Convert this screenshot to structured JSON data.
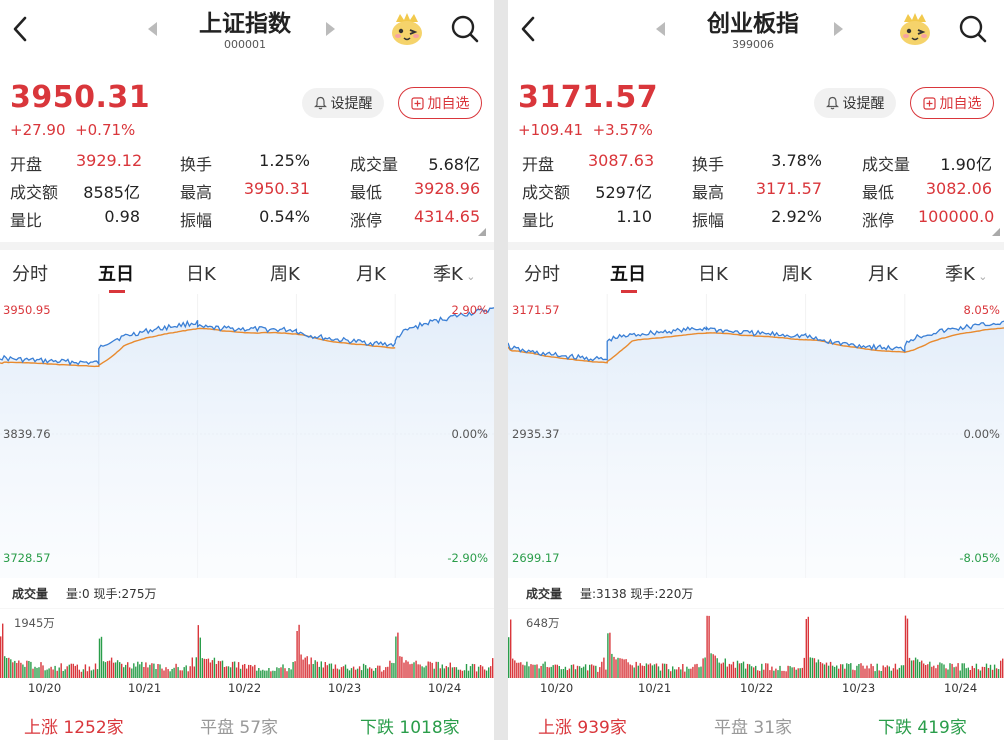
{
  "panels": [
    {
      "title": "上证指数",
      "code": "000001",
      "price": "3950.31",
      "change": "+27.90",
      "change_pct": "+0.71%",
      "alert_label": "设提醒",
      "add_label": "加自选",
      "stats": [
        [
          {
            "label": "开盘",
            "value": "3929.12",
            "color": "#d9363b"
          },
          {
            "label": "换手",
            "value": "1.25%",
            "color": "#222"
          },
          {
            "label": "成交量",
            "value": "5.68亿",
            "color": "#222"
          }
        ],
        [
          {
            "label": "成交额",
            "value": "8585亿",
            "color": "#222"
          },
          {
            "label": "最高",
            "value": "3950.31",
            "color": "#d9363b"
          },
          {
            "label": "最低",
            "value": "3928.96",
            "color": "#d9363b"
          }
        ],
        [
          {
            "label": "量比",
            "value": "0.98",
            "color": "#222"
          },
          {
            "label": "振幅",
            "value": "0.54%",
            "color": "#222"
          },
          {
            "label": "涨停",
            "value": "4314.65",
            "color": "#d9363b"
          }
        ]
      ],
      "tabs": [
        "分时",
        "五日",
        "日K",
        "周K",
        "月K",
        "季K"
      ],
      "active_tab": 1,
      "chart": {
        "y_top": "3950.95",
        "y_mid": "3839.76",
        "y_bot": "3728.57",
        "pct_top": "2.90%",
        "pct_mid": "0.00%",
        "pct_bot": "-2.90%"
      },
      "volume": {
        "label": "成交量",
        "info": "量:0 现手:275万",
        "max": "1945万"
      },
      "dates": [
        "10/20",
        "10/21",
        "10/22",
        "10/23",
        "10/24"
      ],
      "footer": {
        "up_label": "上涨",
        "up_count": "1252家",
        "flat_label": "平盘",
        "flat_count": "57家",
        "down_label": "下跌",
        "down_count": "1018家"
      }
    },
    {
      "title": "创业板指",
      "code": "399006",
      "price": "3171.57",
      "change": "+109.41",
      "change_pct": "+3.57%",
      "alert_label": "设提醒",
      "add_label": "加自选",
      "stats": [
        [
          {
            "label": "开盘",
            "value": "3087.63",
            "color": "#d9363b"
          },
          {
            "label": "换手",
            "value": "3.78%",
            "color": "#222"
          },
          {
            "label": "成交量",
            "value": "1.90亿",
            "color": "#222"
          }
        ],
        [
          {
            "label": "成交额",
            "value": "5297亿",
            "color": "#222"
          },
          {
            "label": "最高",
            "value": "3171.57",
            "color": "#d9363b"
          },
          {
            "label": "最低",
            "value": "3082.06",
            "color": "#d9363b"
          }
        ],
        [
          {
            "label": "量比",
            "value": "1.10",
            "color": "#222"
          },
          {
            "label": "振幅",
            "value": "2.92%",
            "color": "#222"
          },
          {
            "label": "涨停",
            "value": "100000.0",
            "color": "#d9363b"
          }
        ]
      ],
      "tabs": [
        "分时",
        "五日",
        "日K",
        "周K",
        "月K",
        "季K"
      ],
      "active_tab": 1,
      "chart": {
        "y_top": "3171.57",
        "y_mid": "2935.37",
        "y_bot": "2699.17",
        "pct_top": "8.05%",
        "pct_mid": "0.00%",
        "pct_bot": "-8.05%"
      },
      "volume": {
        "label": "成交量",
        "info": "量:3138 现手:220万",
        "max": "648万"
      },
      "dates": [
        "10/20",
        "10/21",
        "10/22",
        "10/23",
        "10/24"
      ],
      "footer": {
        "up_label": "上涨",
        "up_count": "939家",
        "flat_label": "平盘",
        "flat_count": "31家",
        "down_label": "下跌",
        "down_count": "419家"
      }
    }
  ],
  "colors": {
    "up": "#d9363b",
    "down": "#2a9d4a",
    "flat": "#999999",
    "price_line": "#3a7fd5",
    "avg_line": "#e88a2e"
  }
}
